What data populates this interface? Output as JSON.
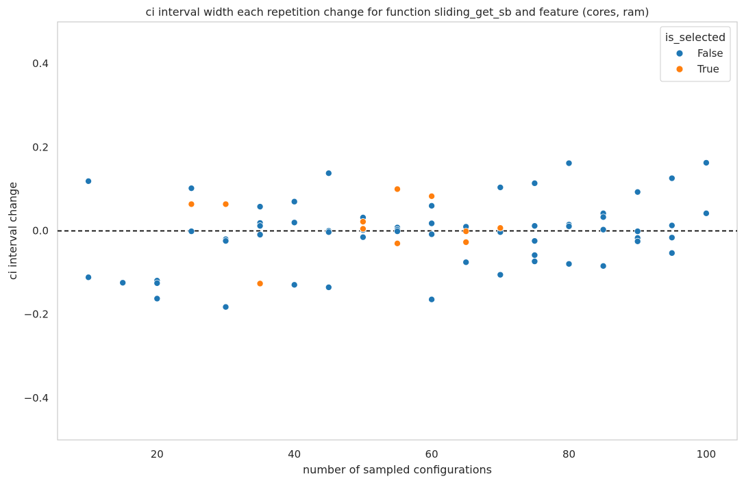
{
  "chart_data": {
    "type": "scatter",
    "title": "ci interval width each repetition change for function sliding_get_sb and feature (cores, ram)",
    "xlabel": "number of sampled configurations",
    "ylabel": "ci interval change",
    "xlim": [
      5.5,
      104.5
    ],
    "ylim": [
      -0.5,
      0.5
    ],
    "x_ticks": [
      20,
      40,
      60,
      80,
      100
    ],
    "y_ticks": [
      -0.4,
      -0.2,
      0.0,
      0.2,
      0.4
    ],
    "x_tick_labels": [
      "20",
      "40",
      "60",
      "80",
      "100"
    ],
    "y_tick_labels": [
      "−0.4",
      "−0.2",
      "0.0",
      "0.2",
      "0.4"
    ],
    "grid": false,
    "reference_line": {
      "y": 0.0,
      "style": "dashed",
      "color": "#000000"
    },
    "legend": {
      "title": "is_selected",
      "placement": "top-right"
    },
    "colors": {
      "False": "#1f77b4",
      "True": "#ff7f0e"
    },
    "series": [
      {
        "name": "False",
        "points": [
          [
            10,
            0.119
          ],
          [
            10,
            -0.111
          ],
          [
            15,
            -0.124
          ],
          [
            20,
            -0.119
          ],
          [
            20,
            -0.125
          ],
          [
            20,
            -0.162
          ],
          [
            25,
            0.102
          ],
          [
            25,
            -0.001
          ],
          [
            30,
            -0.02
          ],
          [
            30,
            -0.024
          ],
          [
            30,
            -0.182
          ],
          [
            35,
            0.058
          ],
          [
            35,
            0.019
          ],
          [
            35,
            0.012
          ],
          [
            35,
            -0.009
          ],
          [
            40,
            0.07
          ],
          [
            40,
            0.02
          ],
          [
            40,
            -0.129
          ],
          [
            45,
            0.138
          ],
          [
            45,
            0.0
          ],
          [
            45,
            -0.003
          ],
          [
            45,
            -0.135
          ],
          [
            50,
            0.032
          ],
          [
            50,
            0.002
          ],
          [
            50,
            -0.015
          ],
          [
            55,
            0.008
          ],
          [
            55,
            0.003
          ],
          [
            55,
            -0.001
          ],
          [
            60,
            0.06
          ],
          [
            60,
            0.018
          ],
          [
            60,
            -0.008
          ],
          [
            60,
            -0.164
          ],
          [
            65,
            0.01
          ],
          [
            65,
            -0.075
          ],
          [
            70,
            0.104
          ],
          [
            70,
            -0.003
          ],
          [
            70,
            -0.105
          ],
          [
            75,
            0.114
          ],
          [
            75,
            0.012
          ],
          [
            75,
            -0.024
          ],
          [
            75,
            -0.058
          ],
          [
            75,
            -0.073
          ],
          [
            80,
            0.162
          ],
          [
            80,
            0.015
          ],
          [
            80,
            0.011
          ],
          [
            80,
            -0.079
          ],
          [
            85,
            0.042
          ],
          [
            85,
            0.033
          ],
          [
            85,
            0.003
          ],
          [
            85,
            -0.084
          ],
          [
            90,
            0.093
          ],
          [
            90,
            -0.001
          ],
          [
            90,
            -0.017
          ],
          [
            90,
            -0.025
          ],
          [
            95,
            0.126
          ],
          [
            95,
            0.013
          ],
          [
            95,
            -0.016
          ],
          [
            95,
            -0.053
          ],
          [
            100,
            0.163
          ],
          [
            100,
            0.042
          ]
        ]
      },
      {
        "name": "True",
        "points": [
          [
            25,
            0.064
          ],
          [
            30,
            0.064
          ],
          [
            35,
            -0.126
          ],
          [
            50,
            0.022
          ],
          [
            50,
            0.005
          ],
          [
            55,
            0.1
          ],
          [
            55,
            -0.03
          ],
          [
            60,
            0.083
          ],
          [
            65,
            -0.001
          ],
          [
            65,
            -0.027
          ],
          [
            70,
            0.007
          ]
        ]
      }
    ]
  }
}
